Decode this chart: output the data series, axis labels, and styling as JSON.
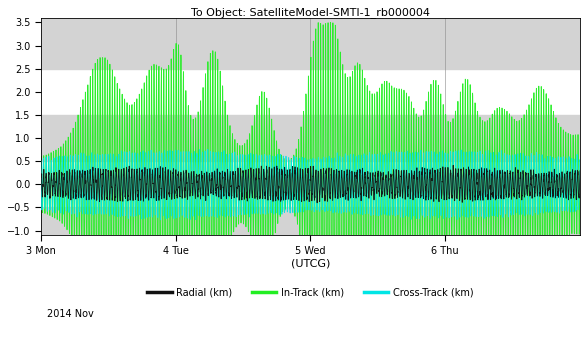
{
  "title": "To Object: SatelliteModel-SMTI-1_rb000004",
  "xlabel": "(UTCG)",
  "date_label": "2014 Nov",
  "legend": [
    "Radial (km)",
    "In-Track (km)",
    "Cross-Track (km)"
  ],
  "legend_colors": [
    "#111111",
    "#22ee22",
    "#00e5e5"
  ],
  "xlim": [
    0,
    4.0
  ],
  "ylim": [
    -1.1,
    3.6
  ],
  "yticks": [
    -1.0,
    -0.5,
    0.0,
    0.5,
    1.0,
    1.5,
    2.0,
    2.5,
    3.0,
    3.5
  ],
  "xtick_positions": [
    0,
    1,
    2,
    3
  ],
  "xtick_labels": [
    "3 Mon",
    "4 Tue",
    "5 Wed",
    "6 Thu"
  ],
  "bg_color": "#d3d3d3",
  "title_fontsize": 8,
  "axis_fontsize": 8,
  "tick_fontsize": 7,
  "legend_fontsize": 7
}
